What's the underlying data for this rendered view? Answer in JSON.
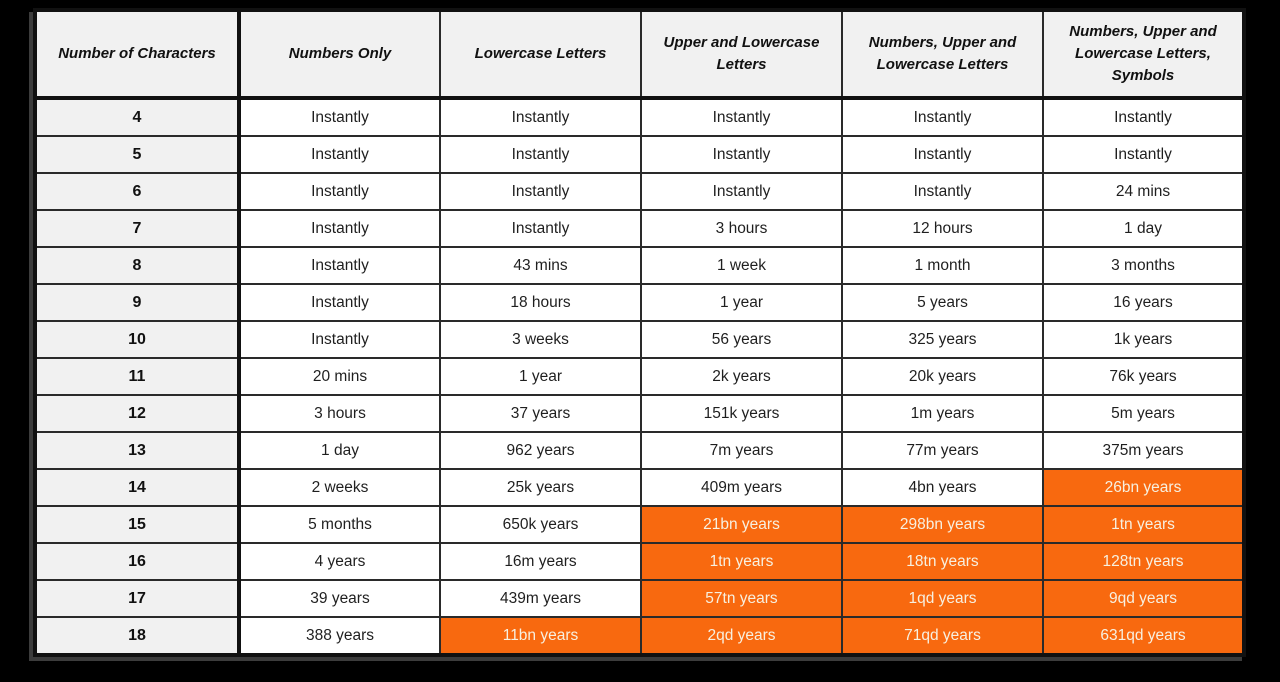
{
  "colors": {
    "frame_bg": "#000000",
    "header_bg": "#f1f1f1",
    "cell_bg": "#ffffff",
    "cell_text": "#1f1f1f",
    "border": "#111111",
    "highlight_bg": "#f8690f",
    "highlight_text": "#f7f0e0"
  },
  "chart_data": {
    "type": "table",
    "columns": [
      "Number of Characters",
      "Numbers Only",
      "Lowercase Letters",
      "Upper and Lowercase Letters",
      "Numbers, Upper and Lowercase Letters",
      "Numbers, Upper and Lowercase Letters, Symbols"
    ],
    "rows": [
      {
        "characters": "4",
        "values": [
          "Instantly",
          "Instantly",
          "Instantly",
          "Instantly",
          "Instantly"
        ],
        "highlighted": [
          false,
          false,
          false,
          false,
          false
        ]
      },
      {
        "characters": "5",
        "values": [
          "Instantly",
          "Instantly",
          "Instantly",
          "Instantly",
          "Instantly"
        ],
        "highlighted": [
          false,
          false,
          false,
          false,
          false
        ]
      },
      {
        "characters": "6",
        "values": [
          "Instantly",
          "Instantly",
          "Instantly",
          "Instantly",
          "24 mins"
        ],
        "highlighted": [
          false,
          false,
          false,
          false,
          false
        ]
      },
      {
        "characters": "7",
        "values": [
          "Instantly",
          "Instantly",
          "3 hours",
          "12 hours",
          "1 day"
        ],
        "highlighted": [
          false,
          false,
          false,
          false,
          false
        ]
      },
      {
        "characters": "8",
        "values": [
          "Instantly",
          "43 mins",
          "1 week",
          "1 month",
          "3 months"
        ],
        "highlighted": [
          false,
          false,
          false,
          false,
          false
        ]
      },
      {
        "characters": "9",
        "values": [
          "Instantly",
          "18 hours",
          "1 year",
          "5 years",
          "16 years"
        ],
        "highlighted": [
          false,
          false,
          false,
          false,
          false
        ]
      },
      {
        "characters": "10",
        "values": [
          "Instantly",
          "3 weeks",
          "56 years",
          "325 years",
          "1k years"
        ],
        "highlighted": [
          false,
          false,
          false,
          false,
          false
        ]
      },
      {
        "characters": "11",
        "values": [
          "20 mins",
          "1 year",
          "2k years",
          "20k years",
          "76k years"
        ],
        "highlighted": [
          false,
          false,
          false,
          false,
          false
        ]
      },
      {
        "characters": "12",
        "values": [
          "3 hours",
          "37 years",
          "151k years",
          "1m years",
          "5m years"
        ],
        "highlighted": [
          false,
          false,
          false,
          false,
          false
        ]
      },
      {
        "characters": "13",
        "values": [
          "1 day",
          "962 years",
          "7m years",
          "77m years",
          "375m years"
        ],
        "highlighted": [
          false,
          false,
          false,
          false,
          false
        ]
      },
      {
        "characters": "14",
        "values": [
          "2 weeks",
          "25k years",
          "409m years",
          "4bn years",
          "26bn years"
        ],
        "highlighted": [
          false,
          false,
          false,
          false,
          true
        ]
      },
      {
        "characters": "15",
        "values": [
          "5 months",
          "650k years",
          "21bn years",
          "298bn years",
          "1tn years"
        ],
        "highlighted": [
          false,
          false,
          true,
          true,
          true
        ]
      },
      {
        "characters": "16",
        "values": [
          "4 years",
          "16m years",
          "1tn years",
          "18tn years",
          "128tn years"
        ],
        "highlighted": [
          false,
          false,
          true,
          true,
          true
        ]
      },
      {
        "characters": "17",
        "values": [
          "39 years",
          "439m years",
          "57tn years",
          "1qd years",
          "9qd years"
        ],
        "highlighted": [
          false,
          false,
          true,
          true,
          true
        ]
      },
      {
        "characters": "18",
        "values": [
          "388 years",
          "11bn years",
          "2qd years",
          "71qd years",
          "631qd years"
        ],
        "highlighted": [
          false,
          true,
          true,
          true,
          true
        ]
      }
    ]
  }
}
